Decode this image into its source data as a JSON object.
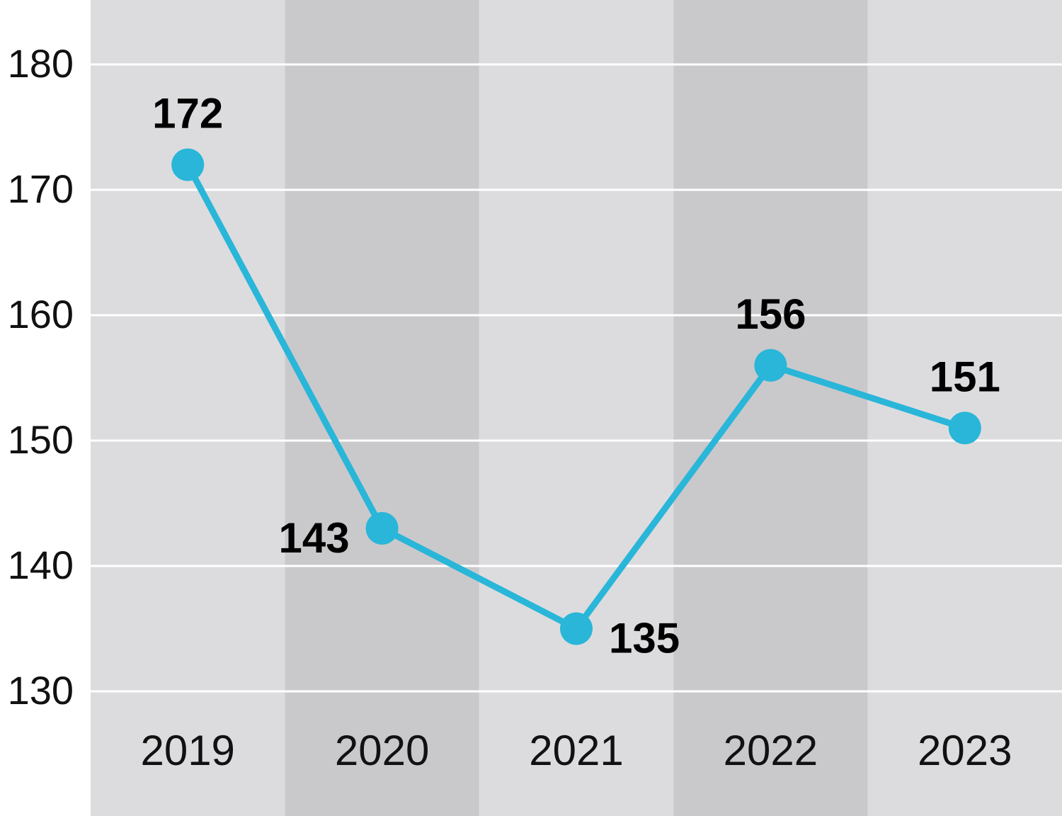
{
  "chart_data": {
    "type": "line",
    "categories": [
      "2019",
      "2020",
      "2021",
      "2022",
      "2023"
    ],
    "series": [
      {
        "values": [
          172,
          143,
          135,
          156,
          151
        ]
      }
    ],
    "data_labels": [
      "172",
      "143",
      "135",
      "156",
      "151"
    ],
    "yticks": [
      "130",
      "140",
      "150",
      "160",
      "170",
      "180"
    ],
    "ylim": [
      130,
      180
    ],
    "grid": true,
    "title": "",
    "xlabel": "",
    "ylabel": ""
  },
  "colors": {
    "line": "#29b6d8",
    "band_light": "#dcdcdf",
    "band_dark": "#c9c9cc",
    "gridline": "#ffffff"
  }
}
